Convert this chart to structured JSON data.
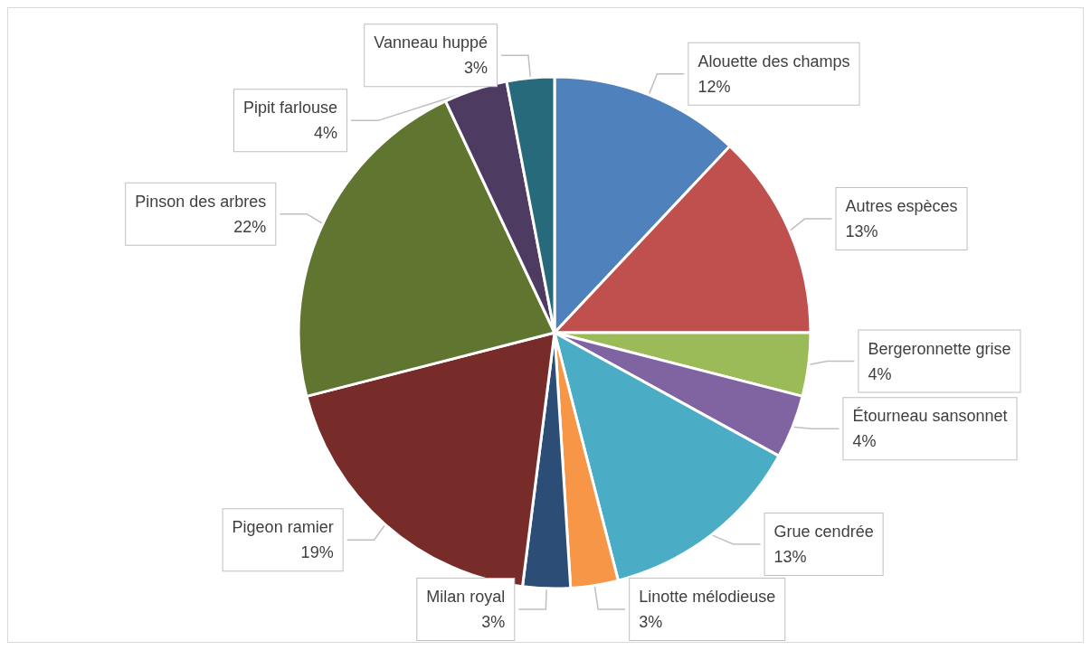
{
  "chart_data": {
    "type": "pie",
    "categories": [
      "Alouette des champs",
      "Autres espèces",
      "Bergeronnette grise",
      "Étourneau sansonnet",
      "Grue cendrée",
      "Linotte mélodieuse",
      "Milan royal",
      "Pigeon ramier",
      "Pinson des arbres",
      "Pipit farlouse",
      "Vanneau huppé"
    ],
    "values": [
      12,
      13,
      4,
      4,
      13,
      3,
      3,
      19,
      22,
      4,
      3
    ],
    "value_labels": [
      "12%",
      "13%",
      "4%",
      "4%",
      "13%",
      "3%",
      "3%",
      "19%",
      "22%",
      "4%",
      "3%"
    ],
    "colors": [
      "#4f81bd",
      "#c0504d",
      "#9bbb59",
      "#8064a2",
      "#4bacc6",
      "#f79646",
      "#2c4d75",
      "#772c2a",
      "#5f7530",
      "#4d3b62",
      "#276a7c"
    ],
    "legend": false
  }
}
